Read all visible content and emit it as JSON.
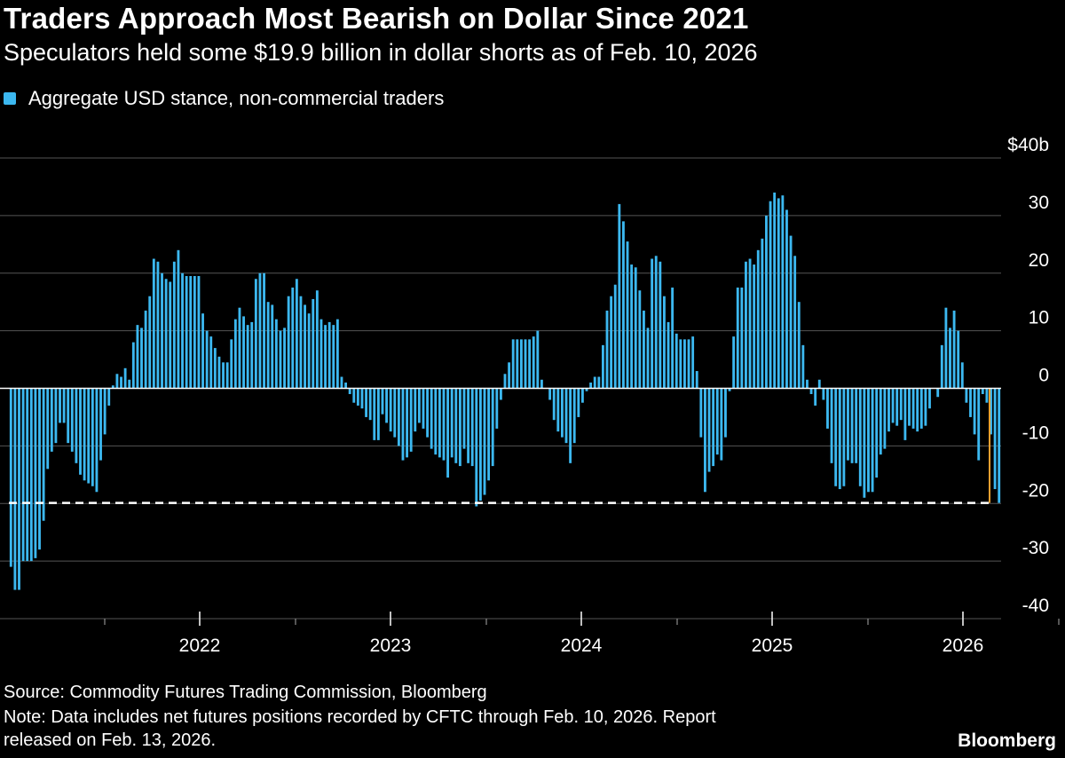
{
  "title": "Traders Approach Most Bearish on Dollar Since 2021",
  "subtitle": "Speculators held some $19.9 billion in dollar shorts as of Feb. 10, 2026",
  "legend": {
    "label": "Aggregate USD stance, non-commercial traders"
  },
  "footer": {
    "source": "Source: Commodity Futures Trading Commission, Bloomberg",
    "note_line1": "Note: Data includes net futures positions recorded by CFTC through Feb. 10, 2026. Report",
    "note_line2": "released on Feb. 13, 2026.",
    "brand": "Bloomberg"
  },
  "colors": {
    "background": "#000000",
    "bar": "#3cb8f0",
    "highlight": "#f0a030",
    "grid": "#555555",
    "zero_line": "#ffffff",
    "reference_line": "#ffffff",
    "text": "#ffffff"
  },
  "chart_data": {
    "type": "bar",
    "title": "Traders Approach Most Bearish on Dollar Since 2021",
    "subtitle": "Speculators held some $19.9 billion in dollar shorts as of Feb. 10, 2026",
    "series_name": "Aggregate USD stance, non-commercial traders",
    "unit": "billion USD",
    "frequency": "weekly",
    "x_start": 2021.0,
    "x_step": 0.01923,
    "ylim": [
      -40,
      40
    ],
    "y_ticks": [
      {
        "value": 40,
        "label": "$40b"
      },
      {
        "value": 30,
        "label": "30"
      },
      {
        "value": 20,
        "label": "20"
      },
      {
        "value": 10,
        "label": "10"
      },
      {
        "value": 0,
        "label": "0"
      },
      {
        "value": -10,
        "label": "-10"
      },
      {
        "value": -20,
        "label": "-20"
      },
      {
        "value": -30,
        "label": "-30"
      },
      {
        "value": -40,
        "label": "-40"
      }
    ],
    "x_ticks": [
      {
        "value": 2022,
        "label": "2022"
      },
      {
        "value": 2023,
        "label": "2023"
      },
      {
        "value": 2024,
        "label": "2024"
      },
      {
        "value": 2025,
        "label": "2025"
      },
      {
        "value": 2026,
        "label": "2026"
      }
    ],
    "reference_line": {
      "value": -19.9,
      "style": "dashed"
    },
    "highlight": {
      "x": 2026.11,
      "value": -19.9
    },
    "values": [
      -31.0,
      -35.0,
      -35.0,
      -30.0,
      -30.0,
      -30.0,
      -29.5,
      -28.0,
      -23.0,
      -14.0,
      -11.0,
      -9.5,
      -6.0,
      -6.0,
      -9.5,
      -11.0,
      -13.0,
      -15.0,
      -16.0,
      -16.5,
      -17.0,
      -18.0,
      -12.5,
      -8.0,
      -3.0,
      0.5,
      2.5,
      2.0,
      3.5,
      1.5,
      8.0,
      11.0,
      10.5,
      13.5,
      16.0,
      22.5,
      22.0,
      20.0,
      19.0,
      18.5,
      22.0,
      24.0,
      20.0,
      19.5,
      19.5,
      19.5,
      19.5,
      13.0,
      10.0,
      9.0,
      7.0,
      5.5,
      4.5,
      4.5,
      8.5,
      12.0,
      14.0,
      12.5,
      11.0,
      11.5,
      19.0,
      20.0,
      20.0,
      15.0,
      14.5,
      12.0,
      10.0,
      10.5,
      16.0,
      17.5,
      19.0,
      16.0,
      14.5,
      13.0,
      15.5,
      17.0,
      12.0,
      11.0,
      11.5,
      11.0,
      12.0,
      2.0,
      1.0,
      -1.0,
      -2.5,
      -3.0,
      -3.5,
      -5.0,
      -5.5,
      -9.0,
      -9.0,
      -4.5,
      -6.0,
      -7.5,
      -8.5,
      -10.0,
      -12.5,
      -12.0,
      -11.0,
      -7.5,
      -6.0,
      -7.0,
      -8.5,
      -10.5,
      -11.5,
      -12.0,
      -12.5,
      -15.5,
      -12.0,
      -13.0,
      -13.5,
      -10.5,
      -13.0,
      -13.5,
      -20.5,
      -19.5,
      -18.5,
      -16.0,
      -13.5,
      -7.0,
      -2.0,
      2.5,
      4.5,
      8.5,
      8.5,
      8.5,
      8.5,
      8.5,
      9.0,
      10.0,
      1.5,
      0.0,
      -2.0,
      -5.5,
      -7.5,
      -8.5,
      -9.5,
      -13.0,
      -9.5,
      -5.0,
      -2.5,
      -0.5,
      1.0,
      2.0,
      2.0,
      7.5,
      13.5,
      16.0,
      18.0,
      32.0,
      29.0,
      25.5,
      21.5,
      21.0,
      17.0,
      13.5,
      10.5,
      22.5,
      23.0,
      22.0,
      16.0,
      11.5,
      17.5,
      9.5,
      8.5,
      8.5,
      8.5,
      9.0,
      3.0,
      -8.5,
      -18.0,
      -14.5,
      -13.5,
      -11.5,
      -12.5,
      -8.5,
      -0.5,
      9.0,
      17.5,
      17.5,
      22.0,
      22.5,
      21.5,
      24.0,
      26.0,
      30.0,
      32.5,
      34.0,
      33.0,
      33.5,
      31.0,
      26.5,
      23.0,
      15.0,
      7.5,
      1.5,
      -1.0,
      -3.0,
      1.5,
      -2.0,
      -7.0,
      -13.0,
      -17.0,
      -17.5,
      -17.0,
      -12.5,
      -13.0,
      -13.0,
      -17.0,
      -19.0,
      -18.0,
      -18.0,
      -15.5,
      -11.5,
      -10.5,
      -7.5,
      -6.0,
      -6.5,
      -5.5,
      -9.0,
      -6.5,
      -7.0,
      -7.5,
      -7.0,
      -6.5,
      -3.5,
      0.0,
      -1.5,
      7.5,
      14.0,
      10.5,
      13.5,
      10.0,
      4.5,
      -2.5,
      -5.0,
      -8.0,
      -12.5,
      -1.0,
      -2.5,
      -8.0,
      -17.5,
      -19.9
    ]
  }
}
